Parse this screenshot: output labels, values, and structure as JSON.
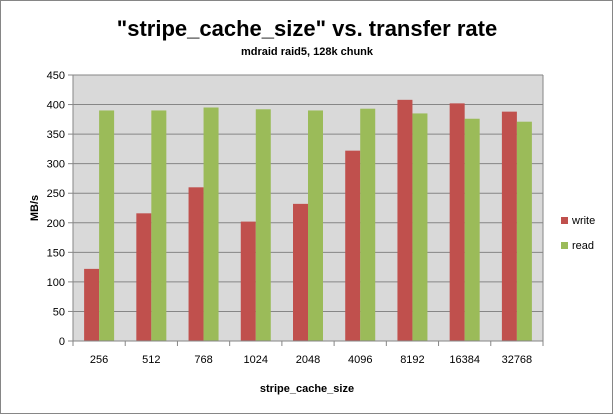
{
  "chart_data": {
    "type": "bar",
    "title": "\"stripe_cache_size\" vs. transfer rate",
    "subtitle": "mdraid raid5, 128k chunk",
    "xlabel": "stripe_cache_size",
    "ylabel": "MB/s",
    "ylim": [
      0,
      450
    ],
    "yticks": [
      0,
      50,
      100,
      150,
      200,
      250,
      300,
      350,
      400,
      450
    ],
    "categories": [
      "256",
      "512",
      "768",
      "1024",
      "2048",
      "4096",
      "8192",
      "16384",
      "32768"
    ],
    "series": [
      {
        "name": "write",
        "color": "#c0504d",
        "values": [
          122,
          216,
          260,
          202,
          232,
          322,
          408,
          402,
          388
        ]
      },
      {
        "name": "read",
        "color": "#9bbb59",
        "values": [
          390,
          390,
          395,
          392,
          390,
          393,
          385,
          376,
          371
        ]
      }
    ],
    "grid": true,
    "legend_position": "right",
    "plot_background": "#d9d9d9",
    "gridline_color": "#868686"
  }
}
